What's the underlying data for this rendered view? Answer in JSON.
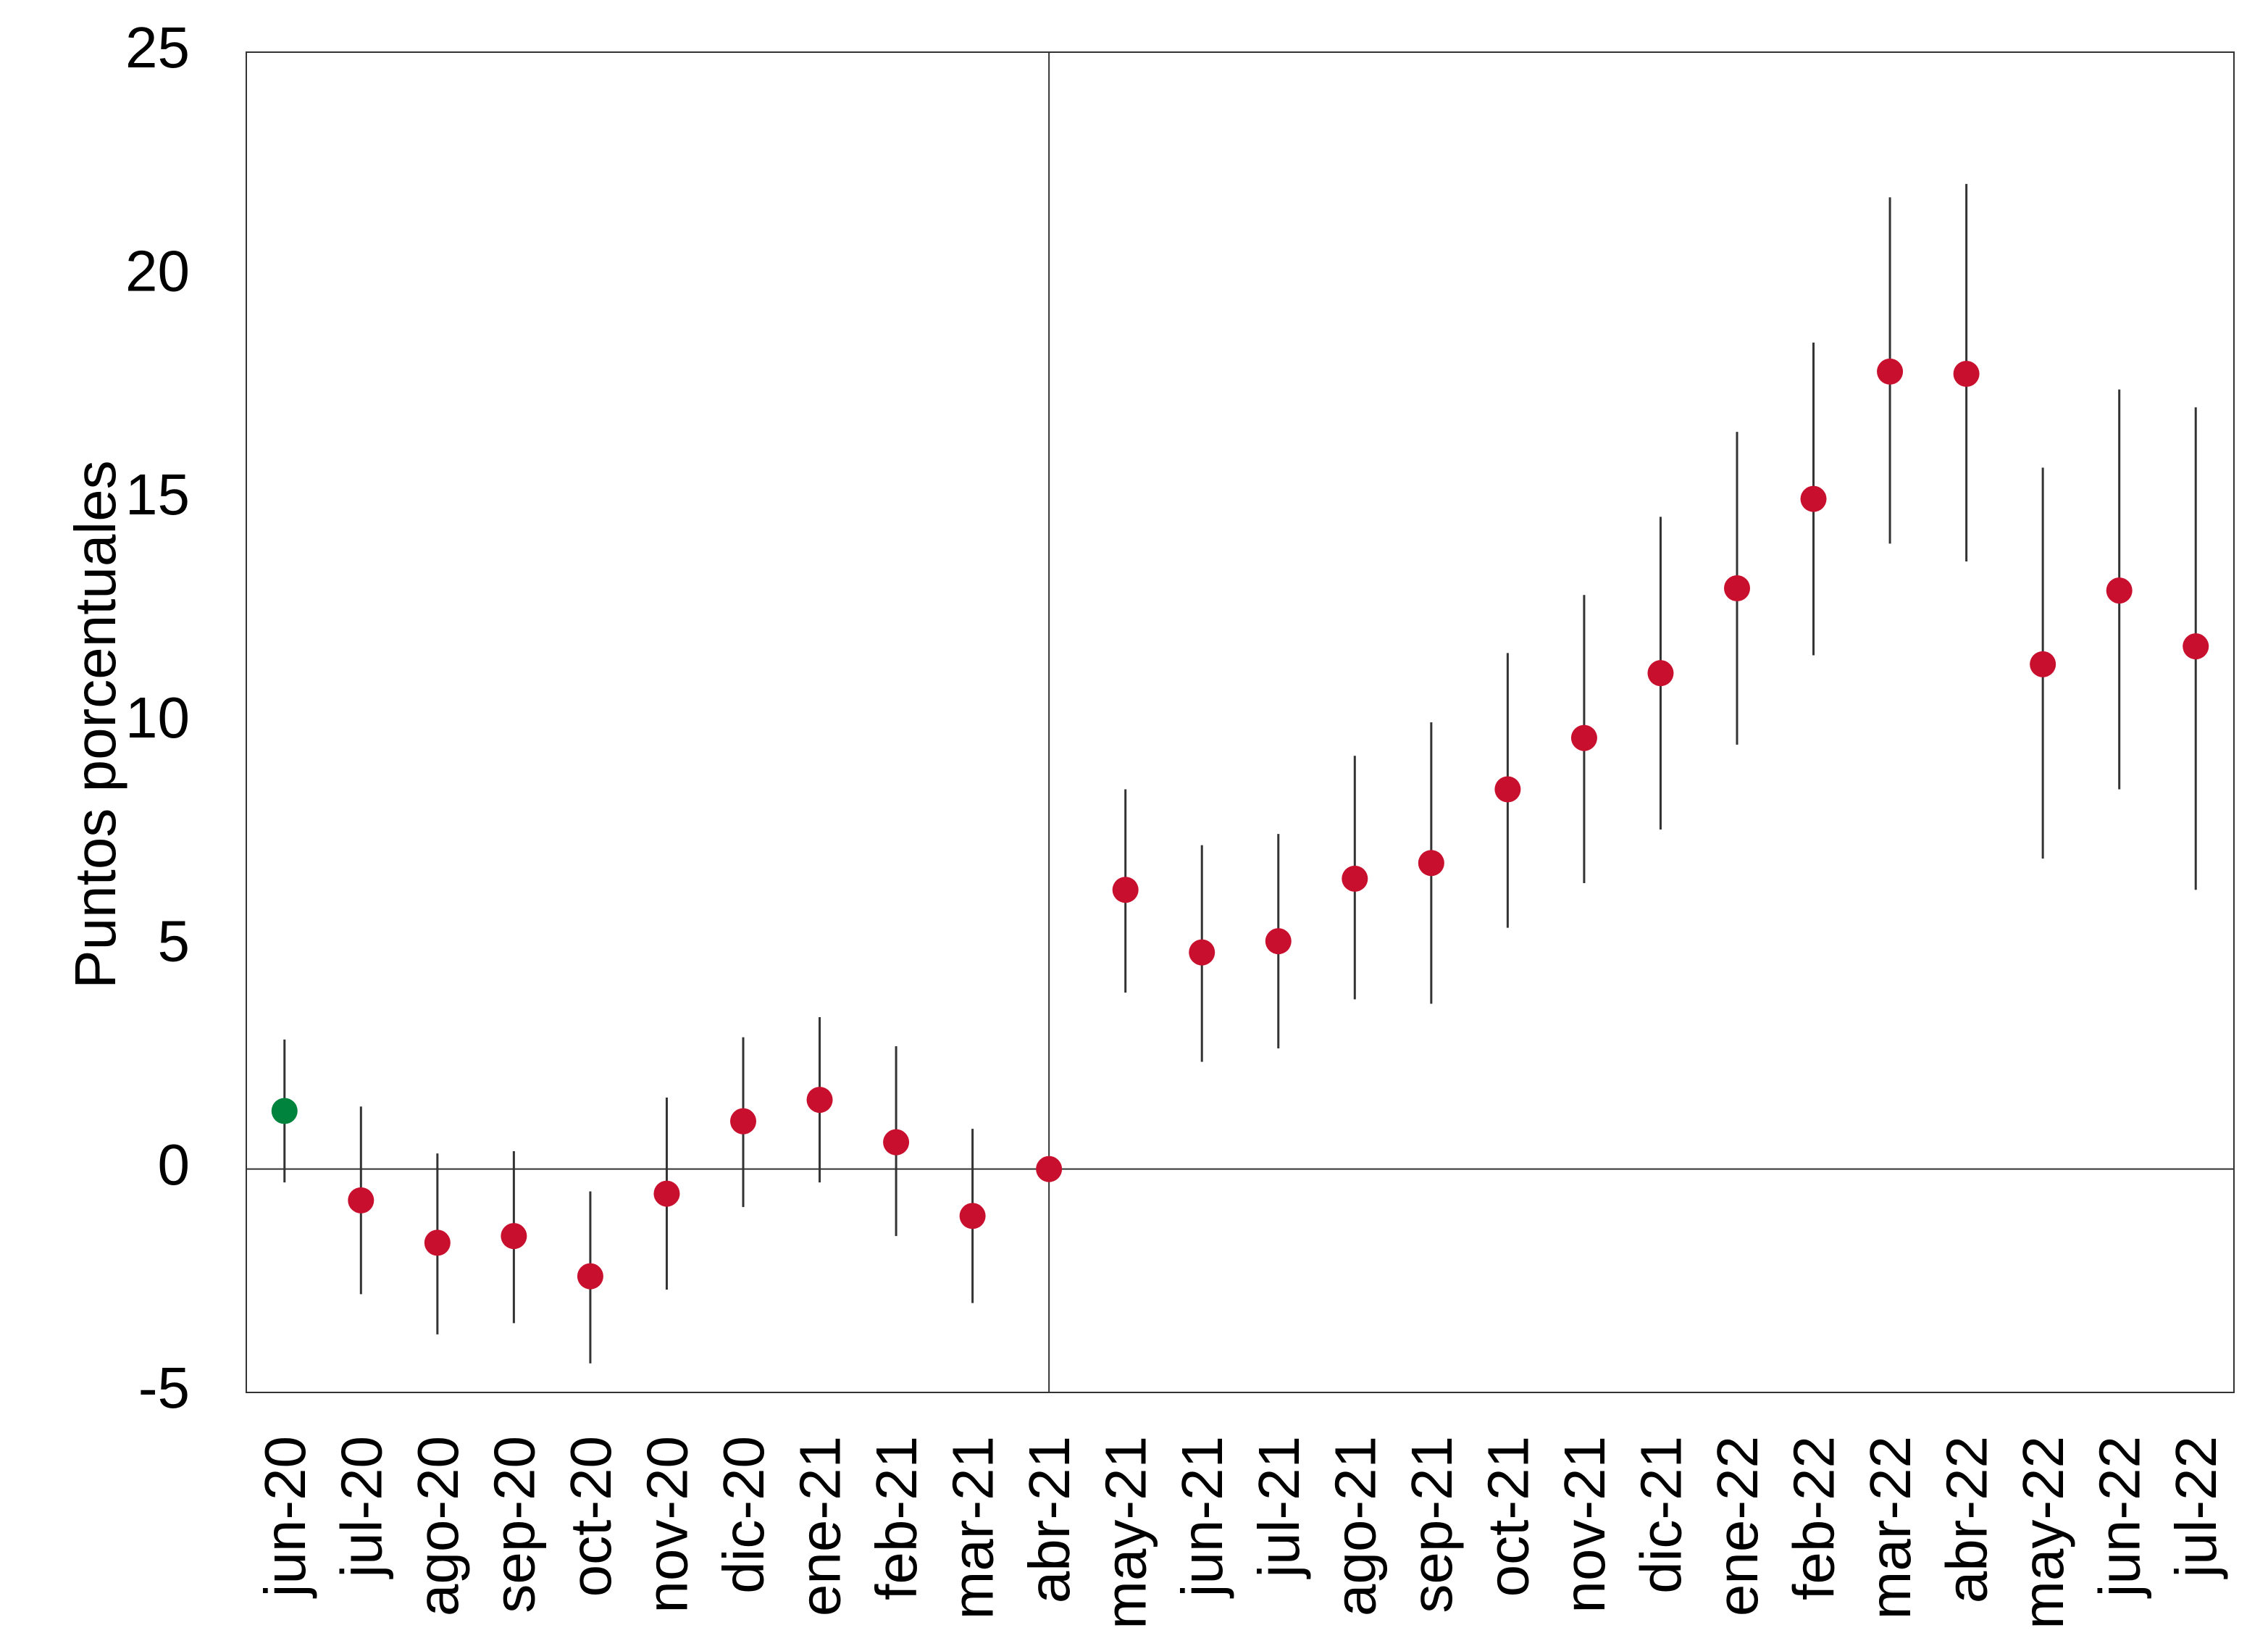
{
  "chart_data": {
    "type": "errorbar-dot",
    "y_label": "Puntos porcentuales",
    "categories": [
      "jun-20",
      "jul-20",
      "ago-20",
      "sep-20",
      "oct-20",
      "nov-20",
      "dic-20",
      "ene-21",
      "feb-21",
      "mar-21",
      "abr-21",
      "may-21",
      "jun-21",
      "jul-21",
      "ago-21",
      "sep-21",
      "oct-21",
      "nov-21",
      "dic-21",
      "ene-22",
      "feb-22",
      "mar-22",
      "abr-22",
      "may-22",
      "jun-22",
      "jul-22"
    ],
    "series": [
      {
        "values": [
          1.3,
          -0.7,
          -1.65,
          -1.5,
          -2.4,
          -0.55,
          1.07,
          1.55,
          0.6,
          -1.05,
          0,
          6.25,
          4.85,
          5.1,
          6.5,
          6.85,
          8.5,
          9.65,
          11.1,
          13.0,
          15.0,
          17.85,
          17.8,
          11.3,
          12.95,
          11.7
        ],
        "low": [
          -0.3,
          -2.8,
          -3.7,
          -3.45,
          -4.35,
          -2.7,
          -0.85,
          -0.3,
          -1.5,
          -3.0,
          null,
          3.95,
          2.4,
          2.7,
          3.8,
          3.7,
          5.4,
          6.4,
          7.6,
          9.5,
          11.5,
          14.0,
          13.6,
          6.95,
          8.5,
          6.25
        ],
        "high": [
          2.9,
          1.4,
          0.35,
          0.4,
          -0.5,
          1.6,
          2.95,
          3.4,
          2.75,
          0.9,
          null,
          8.5,
          7.25,
          7.5,
          9.25,
          10.0,
          11.55,
          12.85,
          14.6,
          16.5,
          18.5,
          21.75,
          22.05,
          15.7,
          17.45,
          17.05
        ],
        "colors": [
          "#00843d",
          "#c8102e",
          "#c8102e",
          "#c8102e",
          "#c8102e",
          "#c8102e",
          "#c8102e",
          "#c8102e",
          "#c8102e",
          "#c8102e",
          "#c8102e",
          "#c8102e",
          "#c8102e",
          "#c8102e",
          "#c8102e",
          "#c8102e",
          "#c8102e",
          "#c8102e",
          "#c8102e",
          "#c8102e",
          "#c8102e",
          "#c8102e",
          "#c8102e",
          "#c8102e",
          "#c8102e",
          "#c8102e"
        ],
        "whisker_color": "#333333"
      }
    ],
    "ylim": [
      -5,
      25
    ],
    "yticks": [
      -5,
      0,
      5,
      10,
      15,
      20,
      25
    ],
    "hline": 0,
    "vline": "abr-21"
  }
}
